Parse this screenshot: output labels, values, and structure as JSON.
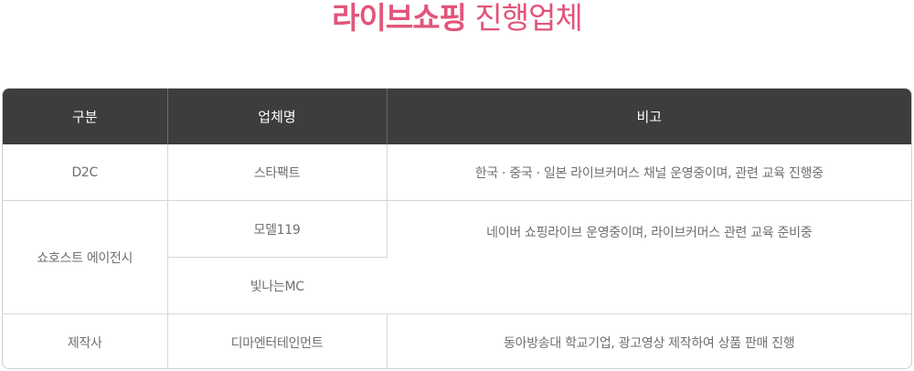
{
  "colors": {
    "title_accent": "#e2547a",
    "header_bg": "#3d3d3d"
  },
  "title": {
    "bold": "라이브쇼핑",
    "light": "진행업체"
  },
  "table": {
    "headers": [
      "구분",
      "업체명",
      "비고"
    ],
    "rows": [
      {
        "category": "D2C",
        "company": "스타팩트",
        "note": "한국 · 중국 · 일본 라이브커머스 채널 운영중이며, 관련 교육 진행중"
      },
      {
        "category": "쇼호스트 에이전시",
        "company": "모델119",
        "note": "네이버 쇼핑라이브 운영중이며, 라이브커머스 관련 교육 준비중"
      },
      {
        "company": "빛나는MC",
        "note": ""
      },
      {
        "category": "제작사",
        "company": "디마엔터테인먼트",
        "note": "동아방송대 학교기업, 광고영상 제작하여 상품 판매 진행"
      }
    ]
  }
}
